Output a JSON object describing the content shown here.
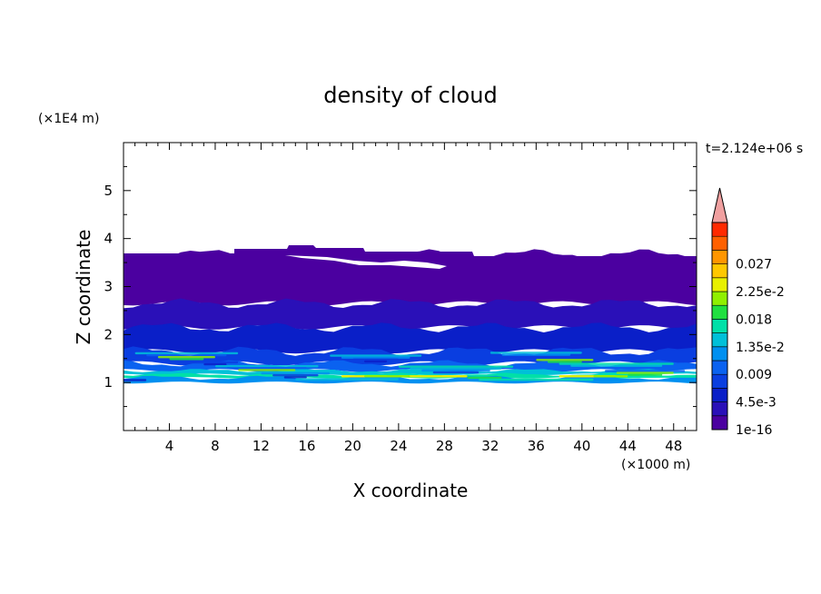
{
  "chart_data": {
    "type": "heatmap",
    "title": "density of cloud",
    "xlabel": "X coordinate",
    "ylabel": "Z coordinate",
    "x_unit": "(×1000 m)",
    "y_unit": "(×1E4 m)",
    "time_label": "t=2.124e+06 s",
    "xlim": [
      0,
      50
    ],
    "ylim": [
      0,
      6
    ],
    "x_ticks": [
      4,
      8,
      12,
      16,
      20,
      24,
      28,
      32,
      36,
      40,
      44,
      48
    ],
    "y_ticks": [
      1,
      2,
      3,
      4,
      5
    ],
    "colorbar": {
      "labels": [
        "1e-16",
        "4.5e-3",
        "0.009",
        "1.35e-2",
        "0.018",
        "2.25e-2",
        "0.027"
      ],
      "colors": [
        "#4b00a0",
        "#2a10b8",
        "#0a1fc8",
        "#0a3ee0",
        "#0a62f0",
        "#0090f0",
        "#00c0d8",
        "#00e0a8",
        "#20e040",
        "#90f000",
        "#e8f000",
        "#ffc800",
        "#ff9600",
        "#ff6000",
        "#ff2a00",
        "#f0a0a0"
      ]
    },
    "bands": [
      {
        "z0": 2.65,
        "z1": 3.68,
        "level": 0
      },
      {
        "z0": 2.15,
        "z1": 2.65,
        "level": 1
      },
      {
        "z0": 1.65,
        "z1": 2.15,
        "level": 2
      },
      {
        "z0": 1.4,
        "z1": 1.65,
        "level": 3
      },
      {
        "z0": 1.25,
        "z1": 1.4,
        "level": 4
      },
      {
        "z0": 1.17,
        "z1": 1.25,
        "level": 6
      },
      {
        "z0": 1.1,
        "z1": 1.17,
        "level": 7
      },
      {
        "z0": 1.0,
        "z1": 1.1,
        "level": 5
      }
    ]
  }
}
